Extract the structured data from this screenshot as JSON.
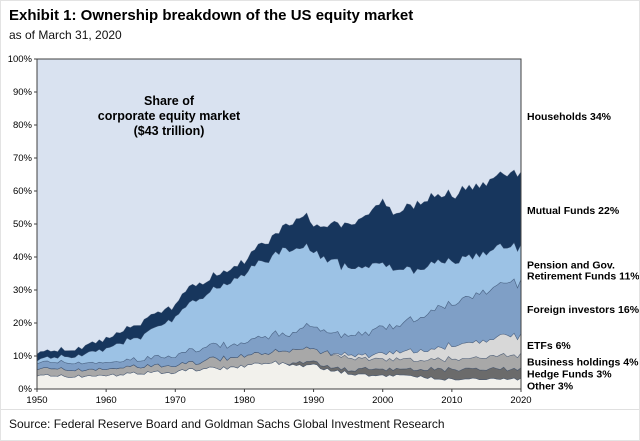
{
  "header": {
    "title": "Exhibit 1: Ownership breakdown of the US equity market",
    "subtitle": "as of March 31, 2020"
  },
  "source_text": "Source: Federal Reserve Board and Goldman Sachs Global Investment Research",
  "chart_data": {
    "type": "area",
    "stacked": true,
    "title": "Share of corporate equity market ($43 trillion)",
    "annotation_lines": [
      "Share of",
      "corporate equity market",
      "($43 trillion)"
    ],
    "grid": false,
    "legend_position": "right",
    "x_label": "",
    "y_label": "",
    "x_range": [
      1950,
      2020
    ],
    "y_range": [
      0,
      100
    ],
    "x_ticks": [
      1950,
      1960,
      1970,
      1980,
      1990,
      2000,
      2010,
      2020
    ],
    "y_ticks": [
      0,
      10,
      20,
      30,
      40,
      50,
      60,
      70,
      80,
      90,
      100
    ],
    "y_tick_suffix": "%",
    "x": [
      1950,
      1955,
      1960,
      1965,
      1970,
      1973,
      1975,
      1980,
      1983,
      1986,
      1988,
      1990,
      1992,
      1995,
      1998,
      2000,
      2002,
      2005,
      2008,
      2010,
      2013,
      2015,
      2018,
      2020
    ],
    "series_note": "values are % of US corporate equity market, stacked bottom-to-top; Households is the remainder drawn as plot background",
    "series": [
      {
        "id": "other",
        "name": "Other",
        "label_lines": [
          "Other 3%"
        ],
        "share_2020": 3,
        "color": "#f2f1ec",
        "values": [
          4,
          4,
          4,
          5,
          5,
          6,
          6,
          7,
          8,
          8,
          7,
          7,
          6,
          5,
          4,
          4,
          4,
          4,
          3,
          3,
          3,
          3,
          3,
          3
        ]
      },
      {
        "id": "hedge-funds",
        "name": "Hedge Funds",
        "label_lines": [
          "Hedge Funds 3%"
        ],
        "share_2020": 3,
        "color": "#6b6b6b",
        "values": [
          0,
          0,
          0,
          0,
          0,
          0,
          0,
          0,
          0,
          0,
          1,
          1,
          1,
          1,
          2,
          2,
          2,
          2,
          3,
          3,
          3,
          3,
          3,
          3
        ]
      },
      {
        "id": "business-holdings",
        "name": "Business holdings",
        "label_lines": [
          "Business holdings 4%"
        ],
        "share_2020": 4,
        "color": "#a8a8a8",
        "values": [
          2,
          2,
          2,
          2,
          2,
          2,
          3,
          3,
          3,
          4,
          4,
          4,
          4,
          4,
          3,
          3,
          3,
          3,
          3,
          3,
          3,
          4,
          4,
          4
        ]
      },
      {
        "id": "etfs",
        "name": "ETFs",
        "label_lines": [
          "ETFs 6%"
        ],
        "share_2020": 6,
        "color": "#d8d8d8",
        "values": [
          0,
          0,
          0,
          0,
          0,
          0,
          0,
          0,
          0,
          0,
          0,
          0,
          0,
          1,
          1,
          2,
          2,
          3,
          3,
          4,
          5,
          5,
          6,
          6
        ]
      },
      {
        "id": "foreign-investors",
        "name": "Foreign investors",
        "label_lines": [
          "Foreign investors 16%"
        ],
        "share_2020": 16,
        "color": "#7f9fc6",
        "values": [
          2,
          2,
          2,
          2,
          3,
          4,
          4,
          4,
          5,
          5,
          6,
          7,
          6,
          6,
          7,
          8,
          8,
          10,
          12,
          13,
          14,
          15,
          16,
          16
        ]
      },
      {
        "id": "pension-funds",
        "name": "Pension and Gov. Retirement Funds",
        "label_lines": [
          "Pension and Gov.",
          "Retirement Funds 11%"
        ],
        "share_2020": 11,
        "color": "#9cc2e5",
        "values": [
          1,
          2,
          4,
          7,
          12,
          15,
          16,
          21,
          23,
          26,
          25,
          23,
          22,
          21,
          20,
          19,
          17,
          15,
          14,
          13,
          12,
          12,
          11,
          11
        ]
      },
      {
        "id": "mutual-funds",
        "name": "Mutual Funds",
        "label_lines": [
          "Mutual Funds 22%"
        ],
        "share_2020": 22,
        "color": "#17365d",
        "values": [
          2,
          2,
          3,
          4,
          4,
          5,
          4,
          4,
          5,
          7,
          9,
          8,
          10,
          13,
          16,
          19,
          17,
          20,
          20,
          20,
          21,
          21,
          22,
          22
        ]
      }
    ],
    "background_series": {
      "id": "households",
      "name": "Households",
      "label_lines": [
        "Households 34%"
      ],
      "share_2020": 34,
      "color": "#d9e2f0",
      "values": [
        89,
        88,
        85,
        80,
        74,
        68,
        67,
        61,
        56,
        50,
        48,
        50,
        51,
        49,
        47,
        43,
        47,
        43,
        42,
        41,
        39,
        37,
        35,
        34
      ]
    }
  },
  "style": {
    "axis_color": "#404040",
    "area_outline": "rgba(40,62,94,0.55)"
  }
}
